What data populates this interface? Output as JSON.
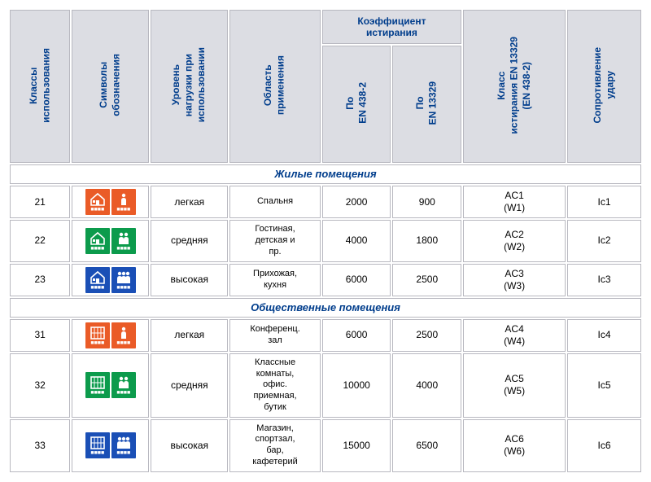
{
  "headers": {
    "class": "Классы\nиспользования",
    "symbol": "Символы\nобозначения",
    "level": "Уровень\nнагрузки при\nиспользовании",
    "application": "Область\nприменения",
    "coef_group": "Коэффициент\nистирания",
    "coef1": "По\nEN 438-2",
    "coef2": "По\nEN 13329",
    "abrasion": "Класс\nистирания EN 13329\n(EN 438-2)",
    "impact": "Сопротивление\nудару"
  },
  "sections": [
    {
      "title": "Жилые  помещения",
      "icon_pair": "home",
      "rows": [
        {
          "cls": "21",
          "color": "#ea5b27",
          "level": "легкая",
          "appl": "Спальня",
          "c1": "2000",
          "c2": "900",
          "abr": "AC1\n(W1)",
          "imp": "Ic1"
        },
        {
          "cls": "22",
          "color": "#0c9b4c",
          "level": "средняя",
          "appl": "Гостиная,\nдетская и\nпр.",
          "c1": "4000",
          "c2": "1800",
          "abr": "AC2\n(W2)",
          "imp": "Ic2"
        },
        {
          "cls": "23",
          "color": "#1a4fb6",
          "level": "высокая",
          "appl": "Прихожая,\nкухня",
          "c1": "6000",
          "c2": "2500",
          "abr": "AC3\n(W3)",
          "imp": "Ic3"
        }
      ]
    },
    {
      "title": "Общественные  помещения",
      "icon_pair": "office",
      "rows": [
        {
          "cls": "31",
          "color": "#ea5b27",
          "level": "легкая",
          "appl": "Конференц.\nзал",
          "c1": "6000",
          "c2": "2500",
          "abr": "AC4\n(W4)",
          "imp": "Ic4"
        },
        {
          "cls": "32",
          "color": "#0c9b4c",
          "level": "средняя",
          "appl": "Классные\nкомнаты,\nофис.\nприемная,\nбутик",
          "c1": "10000",
          "c2": "4000",
          "abr": "AC5\n(W5)",
          "imp": "Ic5"
        },
        {
          "cls": "33",
          "color": "#1a4fb6",
          "level": "высокая",
          "appl": "Магазин,\nспортзал,\nбар,\nкафетерий",
          "c1": "15000",
          "c2": "6500",
          "abr": "AC6\n(W6)",
          "imp": "Ic6"
        }
      ]
    }
  ],
  "style": {
    "header_bg": "#dcdde3",
    "header_text": "#003d8c",
    "border": "#b8b8c0",
    "cell_bg": "#ffffff",
    "colors": {
      "21": "#ea5b27",
      "22": "#0c9b4c",
      "23": "#1a4fb6",
      "31": "#ea5b27",
      "32": "#0c9b4c",
      "33": "#1a4fb6"
    }
  }
}
